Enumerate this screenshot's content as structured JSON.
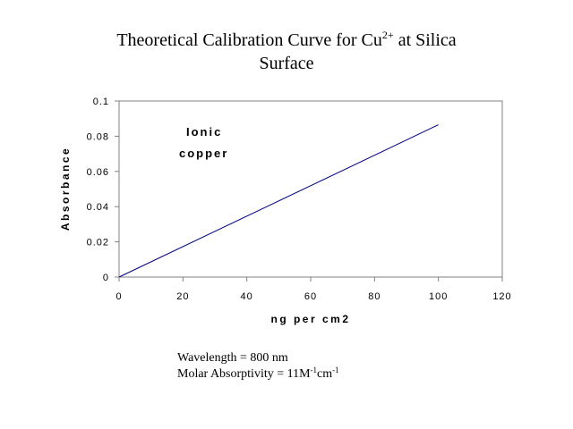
{
  "chart_data": {
    "type": "line",
    "title": "Theoretical Calibration Curve for Cu",
    "title_superscript": "2+",
    "title_suffix_line1": " at Silica",
    "title_line2": "Surface",
    "xlabel": "ng  per  cm2",
    "ylabel": "Absorbance",
    "xlim": [
      0,
      120
    ],
    "ylim": [
      0,
      0.1
    ],
    "x_ticks": [
      "0",
      "20",
      "40",
      "60",
      "80",
      "100",
      "120"
    ],
    "y_ticks": [
      "0",
      "0.02",
      "0.04",
      "0.06",
      "0.08",
      "0.1"
    ],
    "series": [
      {
        "x": [
          0,
          100
        ],
        "y": [
          0,
          0.0865
        ],
        "color": "#000080"
      }
    ],
    "annotation": [
      "Ionic",
      "copper"
    ],
    "grid": false,
    "legend": "none"
  },
  "notes": {
    "wavelength": "Wavelength = 800 nm",
    "molar_prefix": "Molar Absorptivity = 11M",
    "molar_sup1": "-1",
    "molar_mid": "cm",
    "molar_sup2": "-1"
  }
}
